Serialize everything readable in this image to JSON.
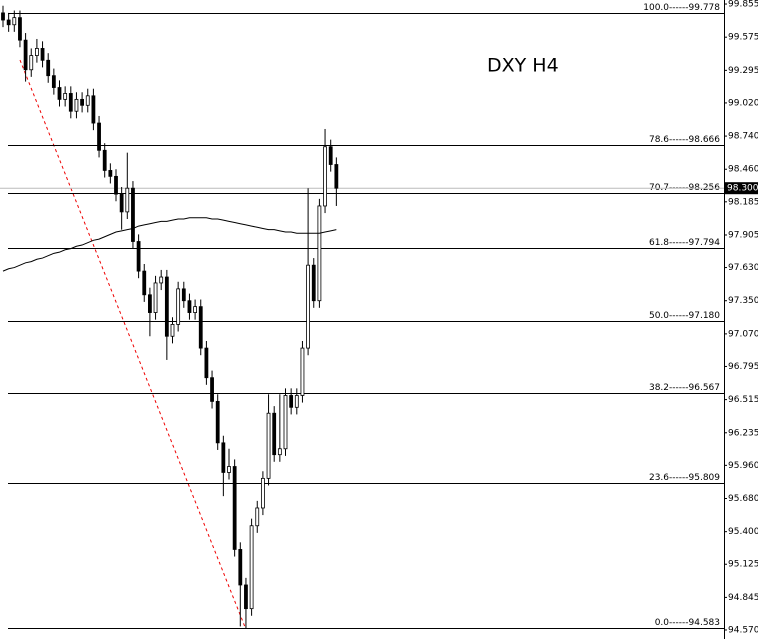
{
  "chart_data": {
    "type": "candlestick",
    "title": "DXY H4",
    "open": [
      99.78,
      99.72,
      99.68,
      99.74,
      99.55,
      99.3,
      99.42,
      99.48,
      99.38,
      99.25,
      99.15,
      99.05,
      99.1,
      98.95,
      99.05,
      99.0,
      99.08,
      98.85,
      98.62,
      98.45,
      98.4,
      98.25,
      98.1,
      98.3,
      97.85,
      97.6,
      97.4,
      97.25,
      97.5,
      97.55,
      97.05,
      97.15,
      97.45,
      97.35,
      97.25,
      97.3,
      96.95,
      96.7,
      96.5,
      96.15,
      95.9,
      95.95,
      95.25,
      94.95,
      94.75,
      95.45,
      95.6,
      95.85,
      96.4,
      96.05,
      96.1,
      96.55,
      96.45,
      96.55,
      96.95,
      97.65,
      97.35,
      98.15,
      98.65,
      98.5
    ],
    "high": [
      99.84,
      99.78,
      99.8,
      99.8,
      99.61,
      99.48,
      99.56,
      99.54,
      99.44,
      99.31,
      99.21,
      99.16,
      99.16,
      99.11,
      99.11,
      99.14,
      99.14,
      98.91,
      98.68,
      98.51,
      98.46,
      98.31,
      98.6,
      98.36,
      97.91,
      97.66,
      97.46,
      97.56,
      97.61,
      97.61,
      97.21,
      97.51,
      97.51,
      97.41,
      97.36,
      97.36,
      97.01,
      96.76,
      96.56,
      96.21,
      96.1,
      96.01,
      95.31,
      95.01,
      95.51,
      95.66,
      95.91,
      96.56,
      96.46,
      96.56,
      96.61,
      96.61,
      96.61,
      97.01,
      98.3,
      97.71,
      98.21,
      98.8,
      98.71,
      98.56
    ],
    "low": [
      99.66,
      99.62,
      99.62,
      99.49,
      99.2,
      99.24,
      99.36,
      99.32,
      99.19,
      99.09,
      98.99,
      98.99,
      98.89,
      98.89,
      98.94,
      98.94,
      98.79,
      98.56,
      98.39,
      98.34,
      98.19,
      97.95,
      98.04,
      97.79,
      97.54,
      97.34,
      97.05,
      97.19,
      97.44,
      96.85,
      96.99,
      97.09,
      97.29,
      97.19,
      97.19,
      96.89,
      96.64,
      96.44,
      96.09,
      95.7,
      95.84,
      95.19,
      94.6,
      94.583,
      94.69,
      95.39,
      95.54,
      95.79,
      95.99,
      95.99,
      96.04,
      96.39,
      96.39,
      96.49,
      96.89,
      97.29,
      97.29,
      98.09,
      98.44,
      98.15
    ],
    "close": [
      99.72,
      99.68,
      99.74,
      99.55,
      99.3,
      99.42,
      99.48,
      99.38,
      99.25,
      99.15,
      99.05,
      99.1,
      98.95,
      99.05,
      99.0,
      99.08,
      98.85,
      98.62,
      98.45,
      98.4,
      98.25,
      98.1,
      98.3,
      97.85,
      97.6,
      97.4,
      97.25,
      97.5,
      97.55,
      97.05,
      97.15,
      97.45,
      97.35,
      97.25,
      97.3,
      96.95,
      96.7,
      96.5,
      96.15,
      95.9,
      95.95,
      95.25,
      94.95,
      94.75,
      95.45,
      95.6,
      95.85,
      96.4,
      96.05,
      96.1,
      96.55,
      96.45,
      96.55,
      96.95,
      97.65,
      97.35,
      98.15,
      98.65,
      98.5,
      98.3
    ],
    "moving_average": [
      97.6,
      97.62,
      97.63,
      97.65,
      97.67,
      97.68,
      97.7,
      97.71,
      97.73,
      97.75,
      97.76,
      97.78,
      97.79,
      97.81,
      97.82,
      97.84,
      97.86,
      97.87,
      97.89,
      97.91,
      97.93,
      97.94,
      97.95,
      97.96,
      97.98,
      97.99,
      98.0,
      98.01,
      98.02,
      98.02,
      98.03,
      98.04,
      98.04,
      98.05,
      98.05,
      98.05,
      98.05,
      98.04,
      98.04,
      98.03,
      98.02,
      98.01,
      98.0,
      97.99,
      97.98,
      97.97,
      97.96,
      97.95,
      97.95,
      97.94,
      97.93,
      97.93,
      97.92,
      97.92,
      97.92,
      97.92,
      97.92,
      97.93,
      97.94,
      97.95
    ],
    "levels": [
      {
        "value": 99.778,
        "label": "100.0------99.778"
      },
      {
        "value": 98.666,
        "label": "78.6------98.666"
      },
      {
        "value": 98.256,
        "label": "70.7------98.256"
      },
      {
        "value": 97.794,
        "label": "61.8------97.794"
      },
      {
        "value": 97.18,
        "label": "50.0------97.180"
      },
      {
        "value": 96.567,
        "label": "38.2------96.567"
      },
      {
        "value": 95.809,
        "label": "23.6------95.809"
      },
      {
        "value": 94.583,
        "label": "0.0------94.583"
      }
    ],
    "last_price": {
      "value": 98.3,
      "label": "98.300"
    },
    "ylim": [
      94.536,
      99.889
    ],
    "yticks": [
      99.855,
      {
        "value": 99.575,
        "label": "99.575"
      },
      99.295,
      {
        "value": 99.02,
        "label": "99.020"
      },
      {
        "value": 98.74,
        "label": "98.740"
      },
      {
        "value": 98.46,
        "label": "98.460"
      },
      98.185,
      97.905,
      {
        "value": 97.63,
        "label": "97.630"
      },
      {
        "value": 97.35,
        "label": "97.350"
      },
      {
        "value": 97.07,
        "label": "97.070"
      },
      96.795,
      96.515,
      96.235,
      {
        "value": 95.96,
        "label": "95.960"
      },
      {
        "value": 95.68,
        "label": "95.680"
      },
      {
        "value": 95.4,
        "label": "95.400"
      },
      95.125,
      94.845,
      {
        "value": 94.57,
        "label": "94.570"
      }
    ]
  }
}
